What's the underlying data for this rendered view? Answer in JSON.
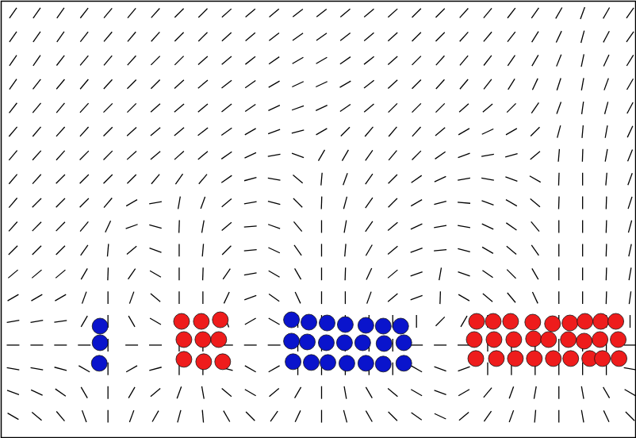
{
  "chart_data": {
    "type": "vector_field",
    "xlim": [
      0,
      802
    ],
    "ylim": [
      552,
      0
    ],
    "tick_labels": false,
    "grid": false,
    "field": {
      "x": [
        15,
        45,
        75,
        105,
        135,
        165,
        195,
        225,
        255,
        285,
        315,
        345,
        375,
        405,
        435,
        465,
        495,
        525,
        555,
        585,
        615,
        645,
        675,
        705,
        735,
        765,
        795
      ],
      "y": [
        15,
        45,
        75,
        105,
        135,
        165,
        195,
        225,
        255,
        285,
        315,
        345,
        375,
        405,
        435,
        465,
        495,
        525
      ],
      "angles": [
        [
          55,
          55,
          55,
          52,
          50,
          50,
          48,
          45,
          45,
          42,
          40,
          40,
          38,
          38,
          40,
          40,
          42,
          45,
          45,
          48,
          50,
          52,
          55,
          60,
          70,
          60,
          55
        ],
        [
          55,
          55,
          55,
          52,
          50,
          50,
          48,
          45,
          45,
          42,
          40,
          38,
          35,
          35,
          38,
          40,
          42,
          45,
          45,
          48,
          50,
          52,
          58,
          65,
          75,
          62,
          55
        ],
        [
          55,
          55,
          52,
          50,
          50,
          48,
          45,
          45,
          42,
          40,
          38,
          35,
          30,
          30,
          35,
          38,
          42,
          45,
          48,
          50,
          52,
          55,
          60,
          68,
          78,
          65,
          58
        ],
        [
          55,
          52,
          50,
          50,
          48,
          45,
          45,
          42,
          40,
          38,
          35,
          30,
          25,
          25,
          30,
          38,
          42,
          45,
          48,
          50,
          52,
          58,
          65,
          72,
          80,
          70,
          60
        ],
        [
          52,
          50,
          50,
          48,
          45,
          45,
          42,
          40,
          40,
          38,
          35,
          25,
          20,
          25,
          35,
          40,
          45,
          45,
          45,
          42,
          40,
          45,
          55,
          70,
          82,
          75,
          62
        ],
        [
          50,
          50,
          48,
          48,
          45,
          42,
          40,
          40,
          38,
          35,
          30,
          20,
          15,
          30,
          45,
          50,
          50,
          48,
          40,
          30,
          25,
          30,
          45,
          75,
          85,
          80,
          65
        ],
        [
          50,
          48,
          48,
          45,
          45,
          42,
          40,
          42,
          40,
          35,
          25,
          10,
          160,
          60,
          60,
          55,
          50,
          45,
          35,
          20,
          10,
          15,
          40,
          85,
          88,
          80,
          68
        ],
        [
          50,
          48,
          45,
          45,
          45,
          45,
          50,
          55,
          50,
          35,
          15,
          170,
          140,
          85,
          70,
          55,
          45,
          35,
          25,
          10,
          170,
          160,
          150,
          88,
          90,
          85,
          70
        ],
        [
          50,
          45,
          45,
          45,
          50,
          30,
          10,
          80,
          70,
          40,
          10,
          165,
          135,
          88,
          75,
          55,
          45,
          30,
          15,
          175,
          160,
          150,
          140,
          88,
          90,
          88,
          72
        ],
        [
          48,
          45,
          45,
          50,
          65,
          20,
          165,
          88,
          80,
          40,
          5,
          160,
          130,
          90,
          80,
          55,
          40,
          25,
          10,
          170,
          155,
          145,
          130,
          90,
          90,
          88,
          75
        ],
        [
          45,
          45,
          45,
          55,
          85,
          40,
          160,
          90,
          85,
          45,
          5,
          155,
          125,
          90,
          85,
          60,
          40,
          20,
          5,
          165,
          150,
          140,
          125,
          90,
          90,
          88,
          78
        ],
        [
          40,
          40,
          40,
          60,
          88,
          55,
          150,
          90,
          88,
          55,
          10,
          150,
          120,
          90,
          88,
          65,
          40,
          20,
          80,
          160,
          145,
          135,
          120,
          90,
          90,
          88,
          80
        ],
        [
          30,
          30,
          30,
          70,
          90,
          70,
          140,
          90,
          90,
          65,
          20,
          145,
          115,
          90,
          90,
          70,
          40,
          20,
          88,
          150,
          140,
          130,
          115,
          90,
          90,
          88,
          82
        ],
        [
          10,
          10,
          8,
          60,
          90,
          120,
          150,
          90,
          90,
          110,
          30,
          150,
          90,
          90,
          90,
          90,
          90,
          90,
          45,
          60,
          90,
          90,
          90,
          90,
          90,
          90,
          90
        ],
        [
          0,
          0,
          0,
          0,
          90,
          0,
          0,
          90,
          90,
          0,
          0,
          0,
          90,
          90,
          90,
          90,
          90,
          0,
          0,
          0,
          90,
          90,
          90,
          90,
          90,
          90,
          0
        ],
        [
          170,
          170,
          165,
          150,
          90,
          30,
          15,
          90,
          90,
          165,
          150,
          30,
          90,
          90,
          90,
          90,
          90,
          150,
          160,
          20,
          90,
          90,
          90,
          90,
          90,
          90,
          170
        ],
        [
          160,
          155,
          145,
          120,
          90,
          60,
          40,
          70,
          100,
          140,
          150,
          40,
          60,
          90,
          100,
          120,
          140,
          150,
          160,
          30,
          50,
          70,
          80,
          90,
          100,
          120,
          150
        ],
        [
          150,
          140,
          130,
          110,
          90,
          70,
          60,
          75,
          95,
          120,
          135,
          55,
          65,
          90,
          105,
          120,
          135,
          145,
          155,
          40,
          55,
          70,
          85,
          90,
          100,
          115,
          135
        ]
      ]
    },
    "particles": [
      {
        "color": "#0a14cc",
        "x": [
          125,
          125,
          124,
          367,
          389,
          412,
          435,
          461,
          483,
          505,
          367,
          387,
          411,
          434,
          457,
          484,
          509,
          369,
          392,
          413,
          437,
          461,
          483,
          509
        ],
        "y": [
          411,
          432,
          458,
          403,
          406,
          407,
          409,
          410,
          411,
          411,
          430,
          431,
          432,
          432,
          432,
          433,
          432,
          456,
          457,
          457,
          458,
          458,
          459,
          458
        ]
      },
      {
        "color": "#ee1c1c",
        "x": [
          228,
          253,
          277,
          231,
          255,
          275,
          231,
          256,
          280,
          601,
          622,
          644,
          672,
          697,
          719,
          738,
          758,
          777,
          598,
          623,
          648,
          673,
          692,
          717,
          737,
          757,
          780,
          600,
          626,
          650,
          674,
          698,
          720,
          744,
          760,
          781
        ],
        "y": [
          405,
          405,
          403,
          428,
          428,
          428,
          453,
          456,
          456,
          405,
          405,
          405,
          406,
          408,
          407,
          405,
          405,
          405,
          428,
          428,
          428,
          427,
          428,
          428,
          430,
          428,
          428,
          452,
          452,
          452,
          452,
          452,
          452,
          452,
          452,
          452
        ]
      }
    ]
  }
}
